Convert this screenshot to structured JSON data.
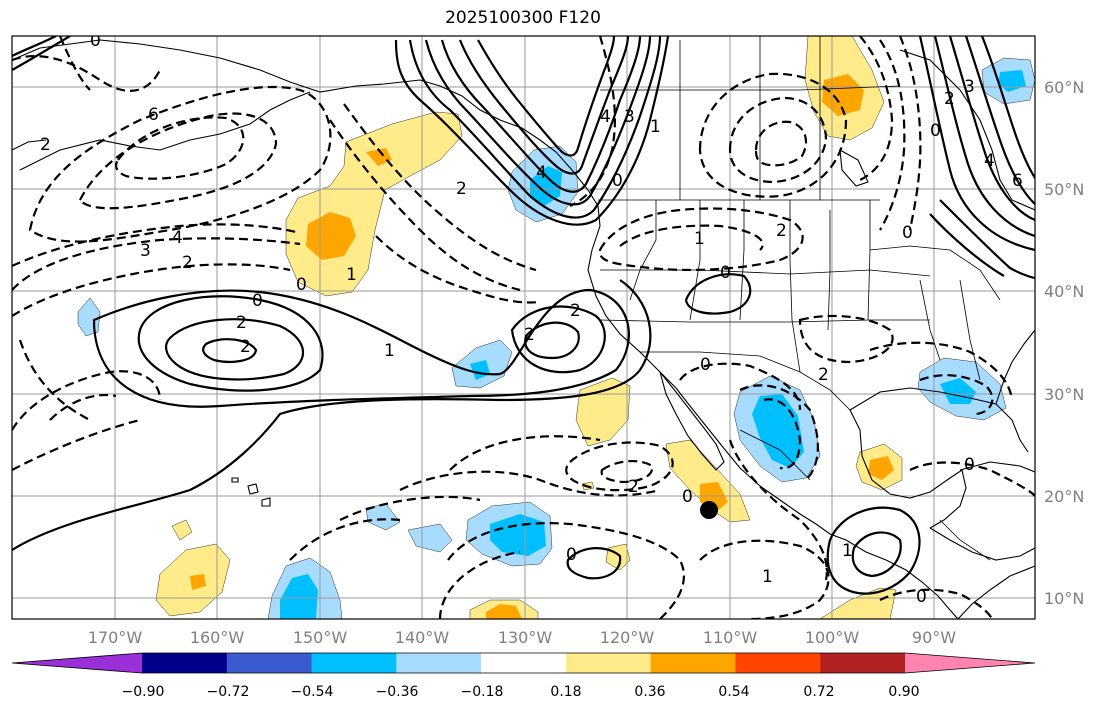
{
  "title": "2025100300 F120",
  "lat_labels": [
    "60°N",
    "50°N",
    "40°N",
    "30°N",
    "20°N",
    "10°N"
  ],
  "lon_labels": [
    "170°W",
    "160°W",
    "150°W",
    "140°W",
    "130°W",
    "120°W",
    "110°W",
    "100°W",
    "90°W"
  ],
  "colorbar": {
    "colors": [
      "#9b30d8",
      "#00008b",
      "#3a5cd0",
      "#00bfff",
      "#a8dcff",
      "#ffffff",
      "#ffeb8a",
      "#ffa500",
      "#ff4500",
      "#b22222",
      "#ff85b0"
    ],
    "tick_labels": [
      "−0.90",
      "−0.72",
      "−0.54",
      "−0.36",
      "−0.18",
      "0.18",
      "0.36",
      "0.54",
      "0.72",
      "0.90"
    ]
  },
  "contour_labels": {
    "a": "6",
    "b": "2",
    "c": "0",
    "d": "4",
    "e": "3",
    "f": "2",
    "g": "1",
    "h": "0",
    "i": "2",
    "j": "2",
    "k": "1",
    "l": "2",
    "m": "2",
    "n": "0",
    "o": "4",
    "p": "3",
    "q": "1",
    "r": "0",
    "s": "2",
    "t": "4",
    "u": "3",
    "v": "2",
    "w": "0",
    "x": "4",
    "y": "6",
    "z": "0",
    "aa": "1",
    "ab": "2",
    "ac": "0",
    "ad": "2",
    "ae": "0",
    "af": "0",
    "ag": "1",
    "ah": "0",
    "ai": "0",
    "aj": "1",
    "ak": "2",
    "al": "0"
  },
  "marker": {
    "label": "storm position",
    "lon": -112,
    "lat": 18.6
  }
}
